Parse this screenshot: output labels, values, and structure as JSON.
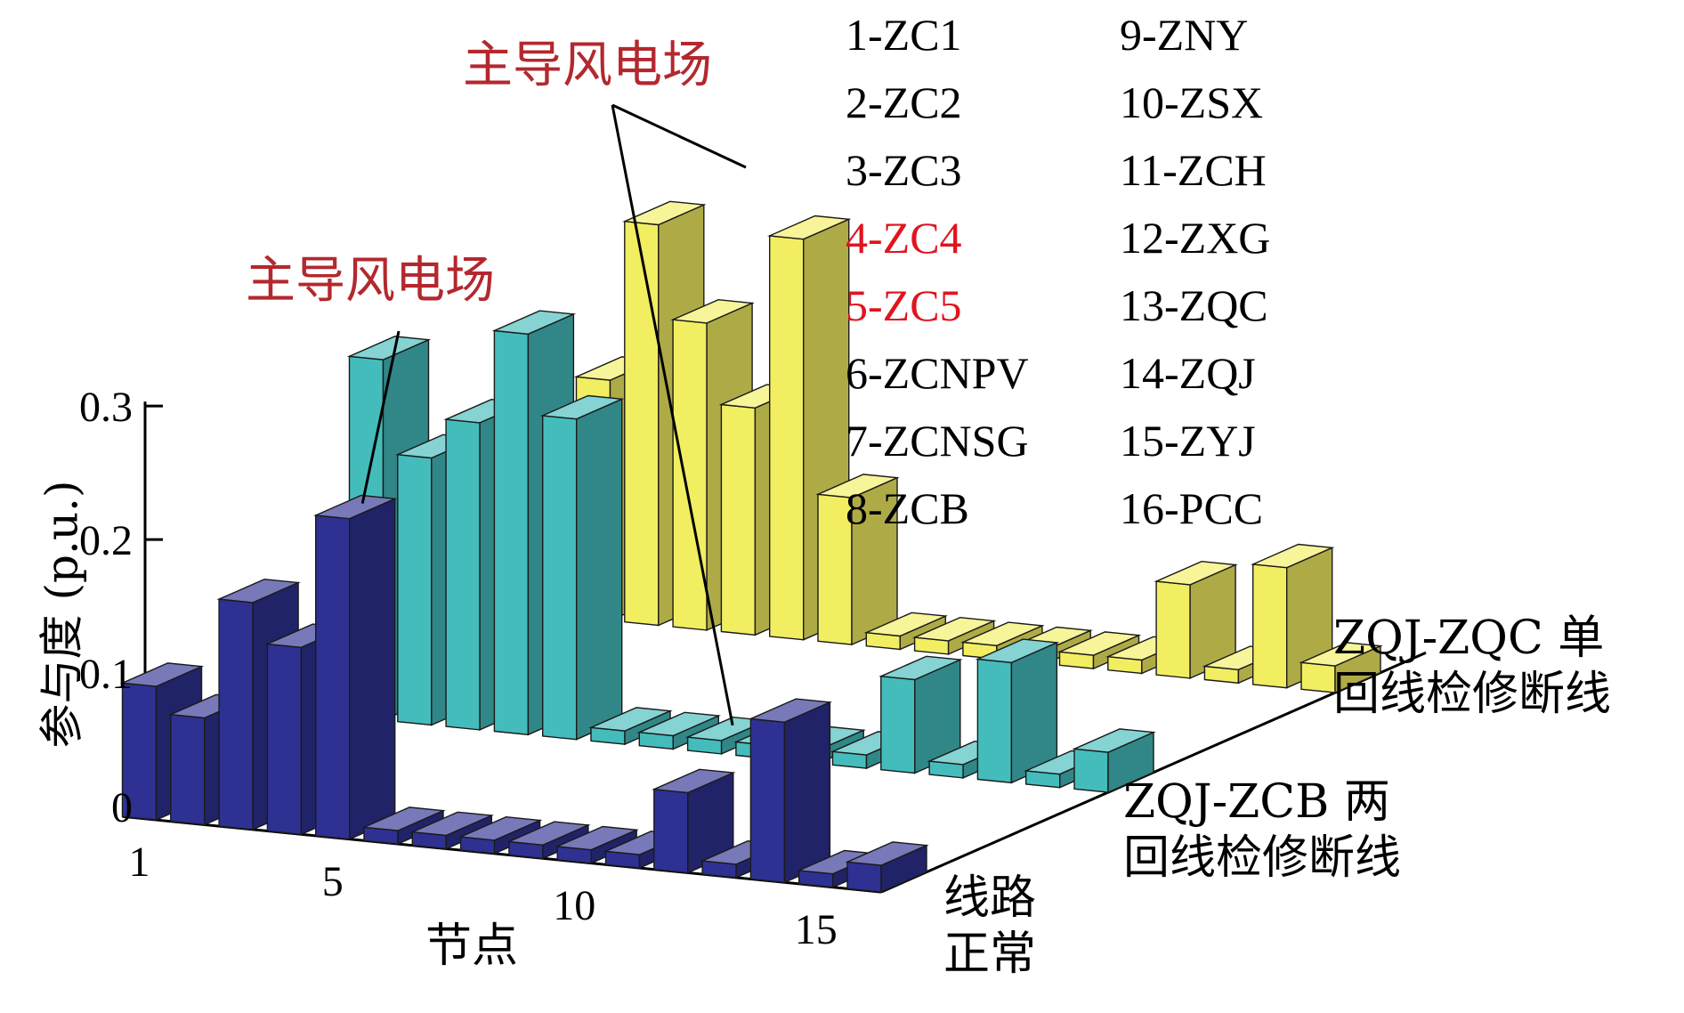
{
  "chart_data": {
    "type": "bar",
    "projection": "3d",
    "ylabel": "参与度 (p.u.)",
    "xlabel": "节点",
    "ylim": [
      0,
      0.3
    ],
    "yticks": [
      "0",
      "0.1",
      "0.2",
      "0.3"
    ],
    "xticks": [
      "1",
      "5",
      "10",
      "15"
    ],
    "categories": [
      "1",
      "2",
      "3",
      "4",
      "5",
      "6",
      "7",
      "8",
      "9",
      "10",
      "11",
      "12",
      "13",
      "14",
      "15",
      "16"
    ],
    "series": [
      {
        "name": "线路正常",
        "label_lines": [
          "线路",
          "正常"
        ],
        "color": "#2e3192",
        "values": [
          0.1,
          0.08,
          0.17,
          0.14,
          0.24,
          0.01,
          0.01,
          0.01,
          0.01,
          0.01,
          0.01,
          0.06,
          0.01,
          0.12,
          0.01,
          0.02
        ]
      },
      {
        "name": "ZQJ-ZCB 两回线检修断线",
        "label_lines": [
          "ZQJ-ZCB 两",
          "回线检修断线"
        ],
        "color": "#44bcbc",
        "values": [
          0.27,
          0.2,
          0.23,
          0.3,
          0.24,
          0.01,
          0.01,
          0.01,
          0.01,
          0.01,
          0.01,
          0.07,
          0.01,
          0.09,
          0.01,
          0.03
        ]
      },
      {
        "name": "ZQJ-ZQC 单回线检修断线",
        "label_lines": [
          "ZQJ-ZQC 单",
          "回线检修断线"
        ],
        "color": "#f2ee62",
        "values": [
          0.18,
          0.3,
          0.23,
          0.17,
          0.3,
          0.11,
          0.01,
          0.01,
          0.01,
          0.01,
          0.01,
          0.01,
          0.07,
          0.01,
          0.09,
          0.02
        ]
      }
    ],
    "legend_left": [
      "1-ZC1",
      "2-ZC2",
      "3-ZC3",
      "4-ZC4",
      "5-ZC5",
      "6-ZCNPV",
      "7-ZCNSG",
      "8-ZCB"
    ],
    "legend_right": [
      "9-ZNY",
      "10-ZSX",
      "11-ZCH",
      "12-ZXG",
      "13-ZQC",
      "14-ZQJ",
      "15-ZYJ",
      "16-PCC"
    ],
    "highlighted_nodes": [
      "4-ZC4",
      "5-ZC5"
    ],
    "highlight_color": "#e0141e",
    "annotations": [
      {
        "text": "主导风电场",
        "color": "#b3282e",
        "series": 0,
        "node": 5
      },
      {
        "text": "主导风电场",
        "color": "#b3282e",
        "series": 1,
        "node": 8
      }
    ],
    "grid": false
  }
}
